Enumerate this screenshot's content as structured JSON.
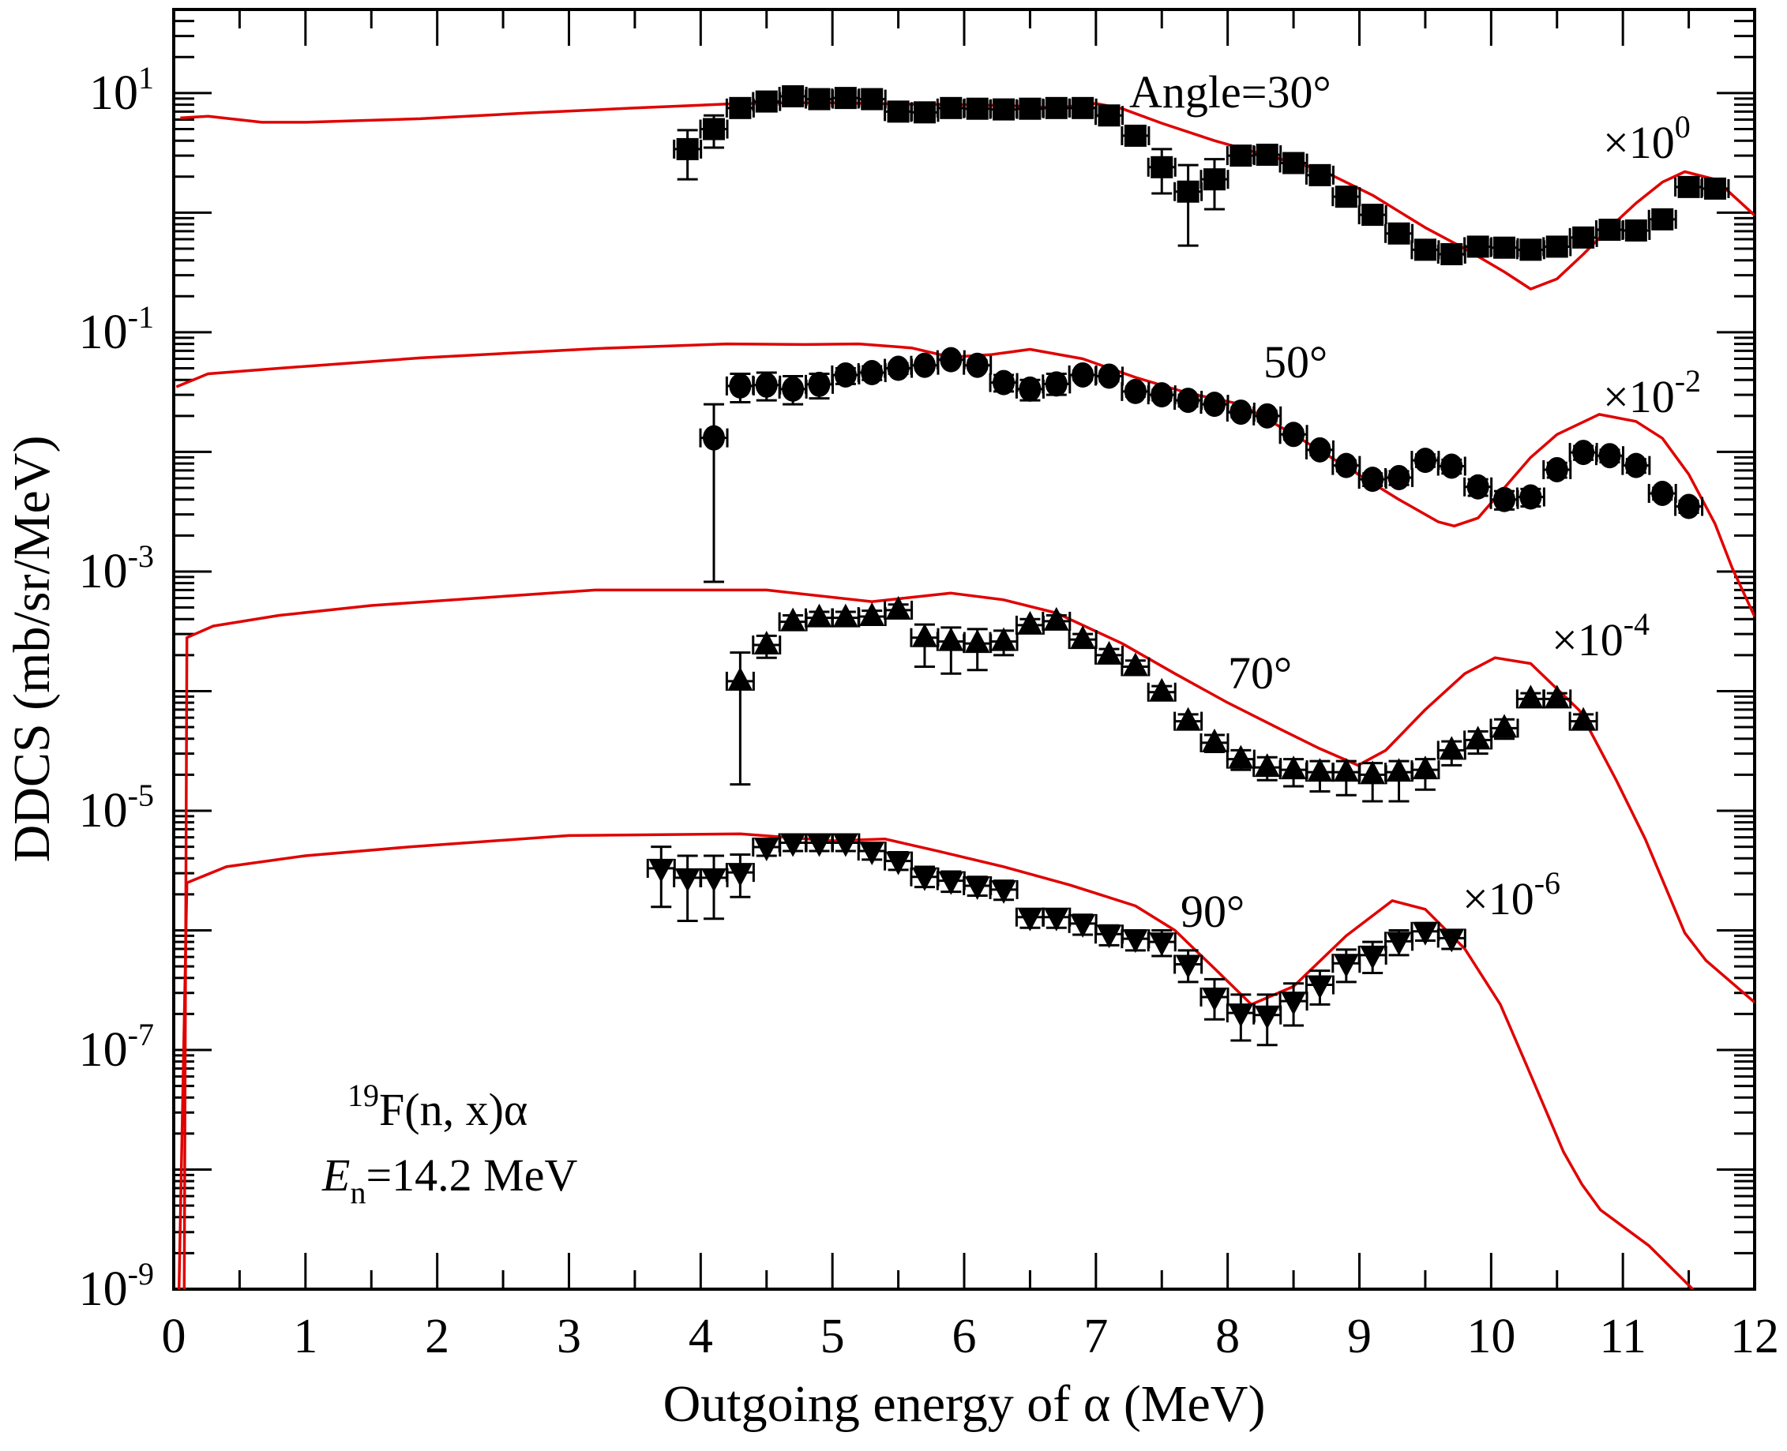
{
  "chart_data": {
    "type": "scatter",
    "title": "",
    "xlabel": "Outgoing energy of α (MeV)",
    "ylabel": "DDCS (mb/sr/MeV)",
    "xlim": [
      0,
      12
    ],
    "ylim": [
      1e-09,
      50
    ],
    "yscale": "log",
    "grid": false,
    "x_ticks": [
      0,
      1,
      2,
      3,
      4,
      5,
      6,
      7,
      8,
      9,
      10,
      11,
      12
    ],
    "x_tick_labels": [
      "0",
      "1",
      "2",
      "3",
      "4",
      "5",
      "6",
      "7",
      "8",
      "9",
      "10",
      "11",
      "12"
    ],
    "y_tick_labels": [
      {
        "value": 10,
        "base": "10",
        "exp": "1"
      },
      {
        "value": 0.1,
        "base": "10",
        "exp": "-1"
      },
      {
        "value": 0.001,
        "base": "10",
        "exp": "-3"
      },
      {
        "value": 1e-05,
        "base": "10",
        "exp": "-5"
      },
      {
        "value": 1e-07,
        "base": "10",
        "exp": "-7"
      },
      {
        "value": 1e-09,
        "base": "10",
        "exp": "-9"
      }
    ],
    "annotations": {
      "reaction": {
        "sup": "19",
        "text": "F(n, x)α"
      },
      "energy": {
        "symbol": "E",
        "sub": "n",
        "text": "=14.2 MeV"
      }
    },
    "series": [
      {
        "name": "30° experiment",
        "angle_label": "Angle=30°",
        "scale_label": {
          "base": "×10",
          "exp": "0"
        },
        "marker": "square",
        "color": "#000000",
        "x": [
          3.9,
          4.1,
          4.3,
          4.5,
          4.7,
          4.9,
          5.1,
          5.3,
          5.5,
          5.7,
          5.9,
          6.1,
          6.3,
          6.5,
          6.7,
          6.9,
          7.1,
          7.3,
          7.5,
          7.7,
          7.9,
          8.1,
          8.3,
          8.5,
          8.7,
          8.9,
          9.1,
          9.3,
          9.5,
          9.7,
          9.9,
          10.1,
          10.3,
          10.5,
          10.7,
          10.9,
          11.1,
          11.3,
          11.5,
          11.7
        ],
        "y": [
          3.4,
          5.0,
          7.5,
          8.5,
          9.4,
          8.9,
          9.1,
          8.9,
          7.0,
          6.9,
          7.5,
          7.4,
          7.3,
          7.4,
          7.5,
          7.5,
          6.5,
          4.4,
          2.4,
          1.5,
          1.9,
          3.0,
          3.05,
          2.6,
          2.06,
          1.36,
          0.96,
          0.67,
          0.49,
          0.45,
          0.52,
          0.51,
          0.49,
          0.52,
          0.62,
          0.72,
          0.71,
          0.88,
          1.64,
          1.59
        ],
        "err_lo": [
          1.9,
          3.5,
          6.6,
          7.6,
          8.6,
          8.1,
          8.3,
          8.1,
          6.3,
          6.2,
          6.8,
          6.7,
          6.6,
          6.7,
          6.8,
          6.8,
          5.9,
          3.9,
          1.45,
          0.53,
          1.07,
          2.7,
          2.75,
          2.3,
          1.85,
          1.2,
          0.86,
          0.6,
          0.44,
          0.4,
          0.45,
          0.44,
          0.42,
          0.45,
          0.53,
          0.62,
          0.6,
          0.78,
          1.5,
          1.45
        ],
        "err_hi": [
          4.9,
          6.5,
          8.4,
          9.4,
          10.3,
          9.8,
          10.0,
          9.8,
          7.8,
          7.7,
          8.3,
          8.2,
          8.1,
          8.2,
          8.3,
          8.3,
          7.2,
          5.0,
          3.4,
          2.5,
          2.8,
          3.3,
          3.35,
          2.9,
          2.3,
          1.5,
          1.06,
          0.75,
          0.54,
          0.5,
          0.58,
          0.57,
          0.55,
          0.58,
          0.7,
          0.8,
          0.8,
          0.98,
          1.8,
          1.75
        ]
      },
      {
        "name": "50° experiment",
        "angle_label": "50°",
        "scale_label": {
          "base": "×10",
          "exp": "-2"
        },
        "marker": "circle",
        "color": "#000000",
        "x": [
          4.1,
          4.3,
          4.5,
          4.7,
          4.9,
          5.1,
          5.3,
          5.5,
          5.7,
          5.9,
          6.1,
          6.3,
          6.5,
          6.7,
          6.9,
          7.1,
          7.3,
          7.5,
          7.7,
          7.9,
          8.1,
          8.3,
          8.5,
          8.7,
          8.9,
          9.1,
          9.3,
          9.5,
          9.7,
          9.9,
          10.1,
          10.3,
          10.5,
          10.7,
          10.9,
          11.1,
          11.3,
          11.5
        ],
        "y": [
          0.0131,
          0.0356,
          0.0362,
          0.0335,
          0.0367,
          0.044,
          0.046,
          0.05,
          0.053,
          0.059,
          0.053,
          0.038,
          0.0335,
          0.037,
          0.044,
          0.043,
          0.032,
          0.03,
          0.027,
          0.025,
          0.0215,
          0.02,
          0.014,
          0.0104,
          0.0077,
          0.0059,
          0.0061,
          0.0085,
          0.0076,
          0.0051,
          0.004,
          0.0042,
          0.0071,
          0.0099,
          0.0093,
          0.0077,
          0.0045,
          0.0035
        ],
        "err_lo": [
          0.00082,
          0.026,
          0.027,
          0.025,
          0.028,
          0.037,
          0.04,
          0.045,
          0.049,
          0.055,
          0.049,
          0.032,
          0.027,
          0.03,
          0.04,
          0.039,
          0.029,
          0.027,
          0.024,
          0.023,
          0.0195,
          0.018,
          0.0127,
          0.0094,
          0.0069,
          0.0052,
          0.0053,
          0.0075,
          0.0066,
          0.0043,
          0.0033,
          0.0035,
          0.0061,
          0.0086,
          0.0082,
          0.0067,
          0.004,
          0.0031
        ],
        "err_hi": [
          0.025,
          0.045,
          0.046,
          0.043,
          0.045,
          0.05,
          0.052,
          0.055,
          0.057,
          0.063,
          0.058,
          0.044,
          0.04,
          0.045,
          0.048,
          0.047,
          0.035,
          0.033,
          0.03,
          0.027,
          0.0235,
          0.022,
          0.0153,
          0.0114,
          0.0085,
          0.0066,
          0.0069,
          0.0095,
          0.0086,
          0.0059,
          0.0047,
          0.0049,
          0.0081,
          0.0112,
          0.0104,
          0.0087,
          0.005,
          0.0039
        ]
      },
      {
        "name": "70° experiment",
        "angle_label": "70°",
        "scale_label": {
          "base": "×10",
          "exp": "-4"
        },
        "marker": "triangle-up",
        "color": "#000000",
        "x": [
          4.3,
          4.5,
          4.7,
          4.9,
          5.1,
          5.3,
          5.5,
          5.7,
          5.9,
          6.1,
          6.3,
          6.5,
          6.7,
          6.9,
          7.1,
          7.3,
          7.5,
          7.7,
          7.9,
          8.1,
          8.3,
          8.5,
          8.7,
          8.9,
          9.1,
          9.3,
          9.5,
          9.7,
          9.9,
          10.1,
          10.3,
          10.5,
          10.7
        ],
        "y": [
          0.000121,
          0.000243,
          0.00038,
          0.00041,
          0.00041,
          0.00042,
          0.000475,
          0.00028,
          0.00026,
          0.00025,
          0.00026,
          0.000356,
          0.000384,
          0.00027,
          0.0002,
          0.00016,
          9.8e-05,
          5.6e-05,
          3.7e-05,
          2.7e-05,
          2.3e-05,
          2.2e-05,
          2.1e-05,
          2.1e-05,
          2e-05,
          2.1e-05,
          2.2e-05,
          3.2e-05,
          3.9e-05,
          4.9e-05,
          8.6e-05,
          8.6e-05,
          5.6e-05
        ],
        "err_lo": [
          1.66e-05,
          0.00019,
          0.00033,
          0.00036,
          0.00036,
          0.00037,
          0.00042,
          0.00016,
          0.00014,
          0.00015,
          0.0002,
          0.00031,
          0.00034,
          0.00024,
          0.000175,
          0.00014,
          8.5e-05,
          4.8e-05,
          3.1e-05,
          2.2e-05,
          1.8e-05,
          1.6e-05,
          1.45e-05,
          1.35e-05,
          1.2e-05,
          1.2e-05,
          1.5e-05,
          2.4e-05,
          3e-05,
          4e-05,
          7.6e-05,
          7.6e-05,
          4.8e-05
        ],
        "err_hi": [
          0.00021,
          0.00029,
          0.00043,
          0.00046,
          0.00046,
          0.00047,
          0.00053,
          0.00036,
          0.00034,
          0.00033,
          0.00032,
          0.0004,
          0.00043,
          0.0003,
          0.000225,
          0.00018,
          0.00011,
          6.4e-05,
          4.3e-05,
          3.2e-05,
          2.8e-05,
          2.7e-05,
          2.6e-05,
          2.6e-05,
          2.5e-05,
          2.6e-05,
          2.7e-05,
          3.8e-05,
          4.6e-05,
          5.8e-05,
          9.6e-05,
          9.6e-05,
          6.4e-05
        ]
      },
      {
        "name": "90° experiment",
        "angle_label": "90°",
        "scale_label": {
          "base": "×10",
          "exp": "-6"
        },
        "marker": "triangle-down",
        "color": "#000000",
        "x": [
          3.7,
          3.9,
          4.1,
          4.3,
          4.5,
          4.7,
          4.9,
          5.1,
          5.3,
          5.5,
          5.7,
          5.9,
          6.1,
          6.3,
          6.5,
          6.7,
          6.9,
          7.1,
          7.3,
          7.5,
          7.7,
          7.9,
          8.1,
          8.3,
          8.5,
          8.7,
          8.9,
          9.1,
          9.3,
          9.5,
          9.7
        ],
        "y": [
          3.3e-06,
          2.75e-06,
          2.75e-06,
          3.05e-06,
          4.97e-06,
          5.4e-06,
          5.4e-06,
          5.4e-06,
          4.6e-06,
          3.8e-06,
          2.8e-06,
          2.6e-06,
          2.36e-06,
          2.19e-06,
          1.29e-06,
          1.29e-06,
          1.14e-06,
          9.3e-07,
          8.5e-07,
          8e-07,
          5.2e-07,
          2.77e-07,
          2.04e-07,
          1.96e-07,
          2.56e-07,
          3.5e-07,
          5.3e-07,
          6.2e-07,
          8.1e-07,
          9.8e-07,
          8.6e-07
        ],
        "err_lo": [
          1.57e-06,
          1.2e-06,
          1.25e-06,
          1.9e-06,
          4.2e-06,
          4.6e-06,
          4.6e-06,
          4.6e-06,
          3.9e-06,
          3.2e-06,
          2.3e-06,
          2.1e-06,
          1.95e-06,
          1.8e-06,
          1.05e-06,
          1.05e-06,
          9.2e-07,
          7.5e-07,
          6.8e-07,
          6.1e-07,
          3.7e-07,
          1.8e-07,
          1.2e-07,
          1.1e-07,
          1.6e-07,
          2.4e-07,
          3.7e-07,
          4.4e-07,
          6.2e-07,
          8.2e-07,
          7e-07
        ],
        "err_hi": [
          5e-06,
          4.2e-06,
          4.2e-06,
          4.3e-06,
          5.8e-06,
          6.2e-06,
          6.2e-06,
          6.2e-06,
          5.4e-06,
          4.5e-06,
          3.4e-06,
          3.1e-06,
          2.8e-06,
          2.6e-06,
          1.5e-06,
          1.5e-06,
          1.35e-06,
          1.1e-06,
          1e-06,
          1e-06,
          6.8e-07,
          3.9e-07,
          2.9e-07,
          2.9e-07,
          3.6e-07,
          4.6e-07,
          6.9e-07,
          8e-07,
          1e-06,
          1.15e-06,
          1e-06
        ]
      },
      {
        "name": "30° calculation",
        "marker": "line",
        "color": "#e00000",
        "x": [
          0.05,
          0.26,
          0.67,
          1.0,
          1.87,
          2.67,
          3.5,
          4.2,
          4.6,
          5.0,
          5.5,
          6.0,
          6.4,
          6.7,
          7.0,
          7.2,
          7.5,
          7.9,
          8.3,
          8.7,
          9.1,
          9.5,
          9.8,
          10.1,
          10.3,
          10.5,
          10.7,
          10.9,
          11.1,
          11.3,
          11.47,
          11.7,
          11.9,
          12.0
        ],
        "y": [
          6.2,
          6.4,
          5.7,
          5.7,
          6.1,
          6.8,
          7.5,
          8.1,
          8.3,
          8.3,
          8.1,
          8.0,
          7.8,
          7.5,
          8.2,
          7.4,
          5.6,
          4.0,
          3.0,
          2.3,
          1.4,
          0.75,
          0.5,
          0.32,
          0.23,
          0.28,
          0.45,
          0.75,
          1.2,
          1.8,
          2.2,
          1.9,
          1.2,
          0.95
        ]
      },
      {
        "name": "50° calculation",
        "marker": "line",
        "color": "#e00000",
        "x": [
          0.02,
          0.26,
          0.8,
          1.87,
          3.2,
          4.2,
          4.8,
          5.2,
          5.6,
          5.9,
          6.2,
          6.5,
          6.9,
          7.3,
          7.7,
          8.1,
          8.5,
          8.9,
          9.3,
          9.6,
          9.72,
          9.9,
          10.1,
          10.3,
          10.5,
          10.82,
          11.1,
          11.3,
          11.5,
          11.7,
          11.83,
          12.0
        ],
        "y": [
          0.035,
          0.045,
          0.05,
          0.061,
          0.073,
          0.08,
          0.079,
          0.08,
          0.074,
          0.062,
          0.065,
          0.072,
          0.06,
          0.042,
          0.031,
          0.025,
          0.014,
          0.0075,
          0.004,
          0.0026,
          0.0024,
          0.0028,
          0.005,
          0.009,
          0.014,
          0.0206,
          0.018,
          0.013,
          0.0065,
          0.0025,
          0.00107,
          0.00042
        ]
      },
      {
        "name": "70° calculation",
        "marker": "line",
        "color": "#e00000",
        "x": [
          0.08,
          0.1,
          0.3,
          0.8,
          1.5,
          2.5,
          3.2,
          4.5,
          5.3,
          5.9,
          6.3,
          6.7,
          7.2,
          7.6,
          8.0,
          8.4,
          8.7,
          8.99,
          9.2,
          9.5,
          9.8,
          10.03,
          10.3,
          10.67,
          10.95,
          11.17,
          11.47,
          11.63,
          12.0
        ],
        "y": [
          1e-09,
          0.00028,
          0.00035,
          0.00043,
          0.00052,
          0.00062,
          0.0007,
          0.0007,
          0.00056,
          0.00066,
          0.00058,
          0.00045,
          0.00025,
          0.00014,
          8e-05,
          4.8e-05,
          3.3e-05,
          2.4e-05,
          3.2e-05,
          7e-05,
          0.00014,
          0.00019,
          0.00017,
          6.9e-05,
          1.8e-05,
          5.8e-06,
          9.5e-07,
          5.6e-07,
          2.5e-07
        ]
      },
      {
        "name": "90° calculation",
        "marker": "line",
        "color": "#e00000",
        "x": [
          0.04,
          0.1,
          0.4,
          1.0,
          1.8,
          3.0,
          4.3,
          5.0,
          5.4,
          5.8,
          6.3,
          6.8,
          7.3,
          7.6,
          7.9,
          8.18,
          8.5,
          8.9,
          9.25,
          9.5,
          9.8,
          10.07,
          10.27,
          10.55,
          10.69,
          10.83,
          11.2,
          11.53
        ],
        "y": [
          1e-09,
          2.5e-06,
          3.4e-06,
          4.2e-06,
          5e-06,
          6.2e-06,
          6.4e-06,
          5.6e-06,
          5.8e-06,
          4.6e-06,
          3.4e-06,
          2.4e-06,
          1.6e-06,
          1e-06,
          4.8e-07,
          2.4e-07,
          3.4e-07,
          9e-07,
          1.77e-06,
          1.5e-06,
          7e-07,
          2.4e-07,
          7.4e-08,
          1.4e-08,
          7.5e-09,
          4.6e-09,
          2.3e-09,
          1e-09
        ]
      }
    ]
  }
}
